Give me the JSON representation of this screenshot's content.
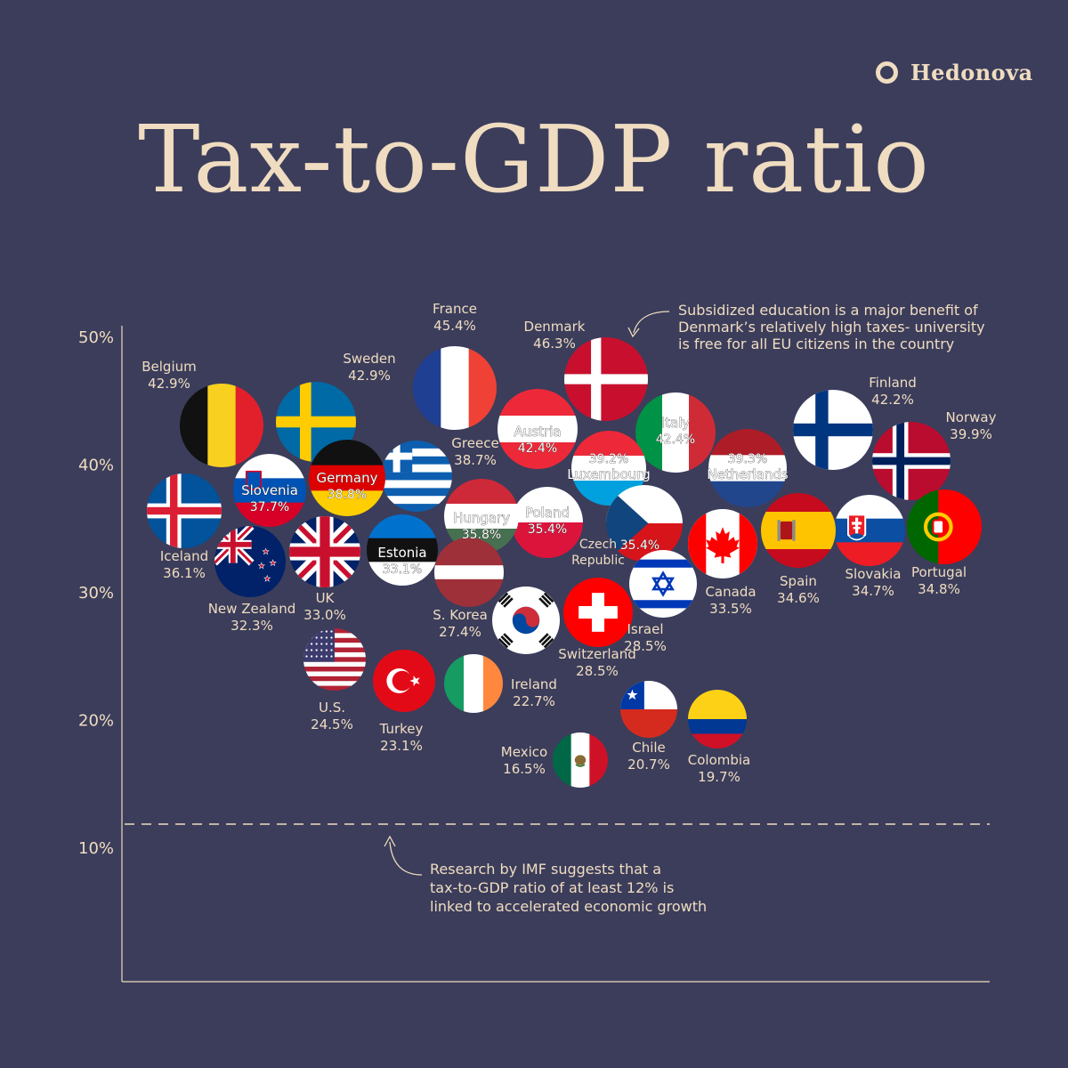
{
  "brand": {
    "name": "Hedonova",
    "icon": "ring-logo-icon"
  },
  "title": "Tax-to-GDP ratio",
  "colors": {
    "background": "#3b3d5b",
    "text": "#f0dcc0",
    "label": "#ffffff"
  },
  "chart_data": {
    "type": "scatter",
    "title": "Tax-to-GDP ratio",
    "ylabel": "",
    "xlabel": "",
    "ylim": [
      0,
      50
    ],
    "yticks": [
      "50%",
      "40%",
      "30%",
      "20%",
      "10%"
    ],
    "ytick_values": [
      50,
      40,
      30,
      20,
      10
    ],
    "grid": false,
    "threshold": {
      "value": 12,
      "style": "dashed"
    },
    "annotations": [
      {
        "text": "Subsidized education is a major benefit of Denmark's relatively high taxes- university is free for all EU citizens in the country",
        "lines": [
          "Subsidized education is a major benefit of",
          "Denmark’s relatively high taxes- university",
          "is free for all EU citizens in the country"
        ]
      },
      {
        "text": "Research by IMF suggests that a tax-to-GDP ratio of at least 12% is linked to accelerated economic growth",
        "lines": [
          "Research by IMF suggests that a",
          "tax-to-GDP ratio of at least 12% is",
          "linked to accelerated economic growth"
        ]
      }
    ],
    "points": [
      {
        "country": "France",
        "value": 45.4,
        "value_label": "45.4%",
        "flag": "france-flag-icon"
      },
      {
        "country": "Denmark",
        "value": 46.3,
        "value_label": "46.3%",
        "flag": "denmark-flag-icon"
      },
      {
        "country": "Belgium",
        "value": 42.9,
        "value_label": "42.9%",
        "flag": "belgium-flag-icon"
      },
      {
        "country": "Sweden",
        "value": 42.9,
        "value_label": "42.9%",
        "flag": "sweden-flag-icon"
      },
      {
        "country": "Austria",
        "value": 42.4,
        "value_label": "42.4%",
        "flag": "austria-flag-icon"
      },
      {
        "country": "Italy",
        "value": 42.4,
        "value_label": "42.4%",
        "flag": "italy-flag-icon"
      },
      {
        "country": "Finland",
        "value": 42.2,
        "value_label": "42.2%",
        "flag": "finland-flag-icon"
      },
      {
        "country": "Norway",
        "value": 39.9,
        "value_label": "39.9%",
        "flag": "norway-flag-icon"
      },
      {
        "country": "Netherlands",
        "value": 39.3,
        "value_label": "39.3%",
        "flag": "netherlands-flag-icon"
      },
      {
        "country": "Luxembourg",
        "value": 39.2,
        "value_label": "39.2%",
        "flag": "luxembourg-flag-icon"
      },
      {
        "country": "Germany",
        "value": 38.8,
        "value_label": "38.8%",
        "flag": "germany-flag-icon"
      },
      {
        "country": "Greece",
        "value": 38.7,
        "value_label": "38.7%",
        "flag": "greece-flag-icon"
      },
      {
        "country": "Slovenia",
        "value": 37.7,
        "value_label": "37.7%",
        "flag": "slovenia-flag-icon"
      },
      {
        "country": "Iceland",
        "value": 36.1,
        "value_label": "36.1%",
        "flag": "iceland-flag-icon"
      },
      {
        "country": "Hungary",
        "value": 35.8,
        "value_label": "35.8%",
        "flag": "hungary-flag-icon"
      },
      {
        "country": "Poland",
        "value": 35.4,
        "value_label": "35.4%",
        "flag": "poland-flag-icon"
      },
      {
        "country": "Czech Republic",
        "value": 35.4,
        "value_label": "35.4%",
        "label_lines": [
          "Czech",
          "Republic"
        ],
        "flag": "czech-flag-icon"
      },
      {
        "country": "Portugal",
        "value": 34.8,
        "value_label": "34.8%",
        "flag": "portugal-flag-icon"
      },
      {
        "country": "Slovakia",
        "value": 34.7,
        "value_label": "34.7%",
        "flag": "slovakia-flag-icon"
      },
      {
        "country": "Spain",
        "value": 34.6,
        "value_label": "34.6%",
        "flag": "spain-flag-icon"
      },
      {
        "country": "Canada",
        "value": 33.5,
        "value_label": "33.5%",
        "flag": "canada-flag-icon"
      },
      {
        "country": "Estonia",
        "value": 33.1,
        "value_label": "33.1%",
        "flag": "estonia-flag-icon"
      },
      {
        "country": "UK",
        "value": 33.0,
        "value_label": "33.0%",
        "flag": "uk-flag-icon"
      },
      {
        "country": "New Zealand",
        "value": 32.3,
        "value_label": "32.3%",
        "flag": "new-zealand-flag-icon"
      },
      {
        "country": "Latvia",
        "value": null,
        "value_label": "",
        "flag": "latvia-flag-icon"
      },
      {
        "country": "Israel",
        "value": 28.5,
        "value_label": "28.5%",
        "flag": "israel-flag-icon"
      },
      {
        "country": "Switzerland",
        "value": 28.5,
        "value_label": "28.5%",
        "flag": "switzerland-flag-icon"
      },
      {
        "country": "S. Korea",
        "value": 27.4,
        "value_label": "27.4%",
        "flag": "south-korea-flag-icon"
      },
      {
        "country": "U.S.",
        "value": 24.5,
        "value_label": "24.5%",
        "flag": "usa-flag-icon"
      },
      {
        "country": "Turkey",
        "value": 23.1,
        "value_label": "23.1%",
        "flag": "turkey-flag-icon"
      },
      {
        "country": "Ireland",
        "value": 22.7,
        "value_label": "22.7%",
        "flag": "ireland-flag-icon"
      },
      {
        "country": "Chile",
        "value": 20.7,
        "value_label": "20.7%",
        "flag": "chile-flag-icon"
      },
      {
        "country": "Colombia",
        "value": 19.7,
        "value_label": "19.7%",
        "flag": "colombia-flag-icon"
      },
      {
        "country": "Mexico",
        "value": 16.5,
        "value_label": "16.5%",
        "flag": "mexico-flag-icon"
      }
    ]
  }
}
